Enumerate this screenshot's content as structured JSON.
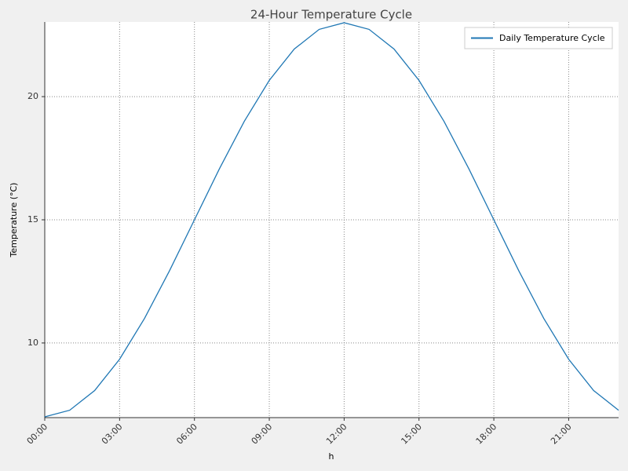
{
  "chart_data": {
    "type": "line",
    "title": "24-Hour Temperature Cycle",
    "x_label": "h",
    "y_label": "Temperature (°C)",
    "x": [
      0,
      1,
      2,
      3,
      4,
      5,
      6,
      7,
      8,
      9,
      10,
      11,
      12,
      13,
      14,
      15,
      16,
      17,
      18,
      19,
      20,
      21,
      22,
      23
    ],
    "series": [
      {
        "name": "Daily Temperature Cycle",
        "color": "#1f77b4",
        "values": [
          7,
          7.27,
          8.07,
          9.34,
          11,
          12.93,
          15,
          17.07,
          19,
          20.66,
          21.93,
          22.73,
          23,
          22.73,
          21.93,
          20.66,
          19,
          17.07,
          15,
          12.93,
          11,
          9.34,
          8.07,
          7.27
        ]
      }
    ],
    "xlim": [
      0,
      23
    ],
    "xticks": [
      {
        "value": 0,
        "label": "00:00"
      },
      {
        "value": 3,
        "label": "03:00"
      },
      {
        "value": 6,
        "label": "06:00"
      },
      {
        "value": 9,
        "label": "09:00"
      },
      {
        "value": 12,
        "label": "12:00"
      },
      {
        "value": 15,
        "label": "15:00"
      },
      {
        "value": 18,
        "label": "18:00"
      },
      {
        "value": 21,
        "label": "21:00"
      }
    ],
    "ylim": [
      6.97,
      23.03
    ],
    "yticks": [
      10,
      15,
      20
    ],
    "grid": true,
    "legend": "upper right"
  }
}
